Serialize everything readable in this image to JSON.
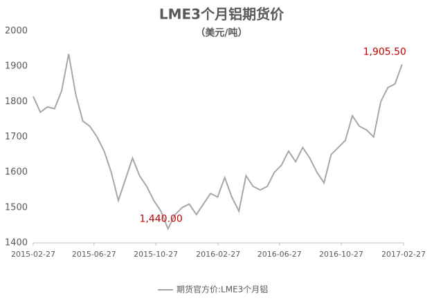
{
  "chart_data": {
    "type": "line",
    "title": "LME3个月铝期货价",
    "subtitle": "（美元/吨）",
    "x": [
      "2015-02-27",
      "2015-03-13",
      "2015-03-27",
      "2015-04-10",
      "2015-04-24",
      "2015-05-08",
      "2015-05-22",
      "2015-06-05",
      "2015-06-19",
      "2015-07-03",
      "2015-07-17",
      "2015-07-31",
      "2015-08-14",
      "2015-08-28",
      "2015-09-11",
      "2015-09-25",
      "2015-10-09",
      "2015-10-23",
      "2015-11-06",
      "2015-11-20",
      "2015-12-04",
      "2015-12-18",
      "2016-01-01",
      "2016-01-15",
      "2016-01-29",
      "2016-02-12",
      "2016-02-26",
      "2016-03-11",
      "2016-03-25",
      "2016-04-08",
      "2016-04-22",
      "2016-05-06",
      "2016-05-20",
      "2016-06-03",
      "2016-06-17",
      "2016-07-01",
      "2016-07-15",
      "2016-07-29",
      "2016-08-12",
      "2016-08-26",
      "2016-09-09",
      "2016-09-23",
      "2016-10-07",
      "2016-10-21",
      "2016-11-04",
      "2016-11-18",
      "2016-12-02",
      "2016-12-16",
      "2016-12-30",
      "2017-01-13",
      "2017-01-27",
      "2017-02-10",
      "2017-02-24"
    ],
    "series": [
      {
        "name": "期货官方价:LME3个月铝",
        "color": "#a6a6a6",
        "values": [
          1815,
          1770,
          1785,
          1780,
          1830,
          1935,
          1820,
          1745,
          1730,
          1700,
          1660,
          1600,
          1520,
          1580,
          1640,
          1590,
          1560,
          1520,
          1490,
          1440,
          1480,
          1500,
          1510,
          1480,
          1510,
          1540,
          1530,
          1585,
          1530,
          1490,
          1590,
          1560,
          1550,
          1560,
          1600,
          1620,
          1660,
          1630,
          1670,
          1640,
          1600,
          1570,
          1650,
          1670,
          1690,
          1760,
          1730,
          1720,
          1700,
          1800,
          1840,
          1850,
          1905.5
        ],
        "value_labels": [
          null,
          null,
          null,
          null,
          null,
          null,
          null,
          null,
          null,
          null,
          null,
          null,
          null,
          null,
          null,
          null,
          null,
          null,
          null,
          "1,440.00",
          null,
          null,
          null,
          null,
          null,
          null,
          null,
          null,
          null,
          null,
          null,
          null,
          null,
          null,
          null,
          null,
          null,
          null,
          null,
          null,
          null,
          null,
          null,
          null,
          null,
          null,
          null,
          null,
          null,
          null,
          null,
          null,
          "1,905.50"
        ],
        "label_color": "#c00000"
      }
    ],
    "xlim": [
      "2015-02-27",
      "2017-02-27"
    ],
    "xticks": [
      "2015-02-27",
      "2015-06-27",
      "2015-10-27",
      "2016-02-27",
      "2016-06-27",
      "2016-10-27",
      "2017-02-27"
    ],
    "ylim": [
      1400,
      2000
    ],
    "yticks": [
      1400,
      1500,
      1600,
      1700,
      1800,
      1900,
      2000
    ],
    "grid": false
  }
}
